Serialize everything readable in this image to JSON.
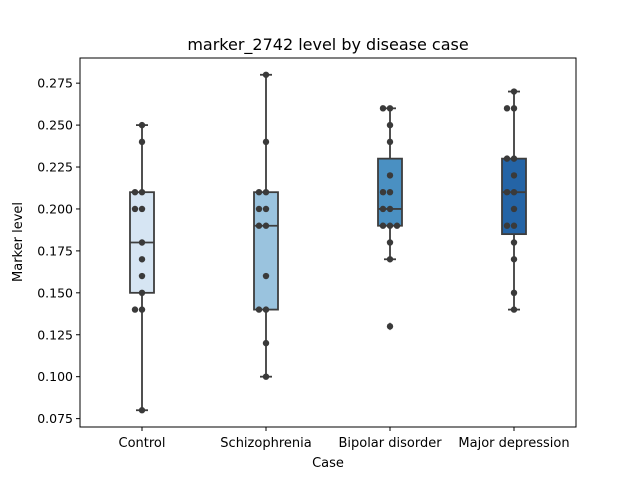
{
  "chart_data": {
    "type": "box",
    "title": "marker_2742 level by disease case",
    "xlabel": "Case",
    "ylabel": "Marker level",
    "ylim": [
      0.07,
      0.29
    ],
    "y_ticks": [
      0.075,
      0.1,
      0.125,
      0.15,
      0.175,
      0.2,
      0.225,
      0.25,
      0.275
    ],
    "y_tick_labels": [
      "0.075",
      "0.100",
      "0.125",
      "0.150",
      "0.175",
      "0.200",
      "0.225",
      "0.250",
      "0.275"
    ],
    "categories": [
      "Control",
      "Schizophrenia",
      "Bipolar disorder",
      "Major depression"
    ],
    "colors": [
      "#d6e5f3",
      "#9ac3de",
      "#4a90c2",
      "#2464a6"
    ],
    "boxes": [
      {
        "q1": 0.15,
        "median": 0.18,
        "q3": 0.21,
        "whisker_low": 0.08,
        "whisker_high": 0.25,
        "outliers": []
      },
      {
        "q1": 0.14,
        "median": 0.19,
        "q3": 0.21,
        "whisker_low": 0.1,
        "whisker_high": 0.28,
        "outliers": []
      },
      {
        "q1": 0.19,
        "median": 0.2,
        "q3": 0.23,
        "whisker_low": 0.17,
        "whisker_high": 0.26,
        "outliers": [
          0.13
        ]
      },
      {
        "q1": 0.185,
        "median": 0.21,
        "q3": 0.23,
        "whisker_low": 0.14,
        "whisker_high": 0.27,
        "outliers": []
      }
    ],
    "points": [
      [
        0.25,
        0.24,
        0.21,
        0.21,
        0.2,
        0.2,
        0.18,
        0.17,
        0.16,
        0.15,
        0.14,
        0.14,
        0.08
      ],
      [
        0.28,
        0.24,
        0.21,
        0.21,
        0.2,
        0.2,
        0.19,
        0.19,
        0.16,
        0.14,
        0.14,
        0.12,
        0.1
      ],
      [
        0.26,
        0.26,
        0.25,
        0.24,
        0.22,
        0.21,
        0.21,
        0.2,
        0.2,
        0.19,
        0.19,
        0.19,
        0.18,
        0.17,
        0.13
      ],
      [
        0.27,
        0.26,
        0.26,
        0.23,
        0.23,
        0.22,
        0.21,
        0.21,
        0.2,
        0.19,
        0.19,
        0.18,
        0.17,
        0.15,
        0.14
      ]
    ]
  }
}
